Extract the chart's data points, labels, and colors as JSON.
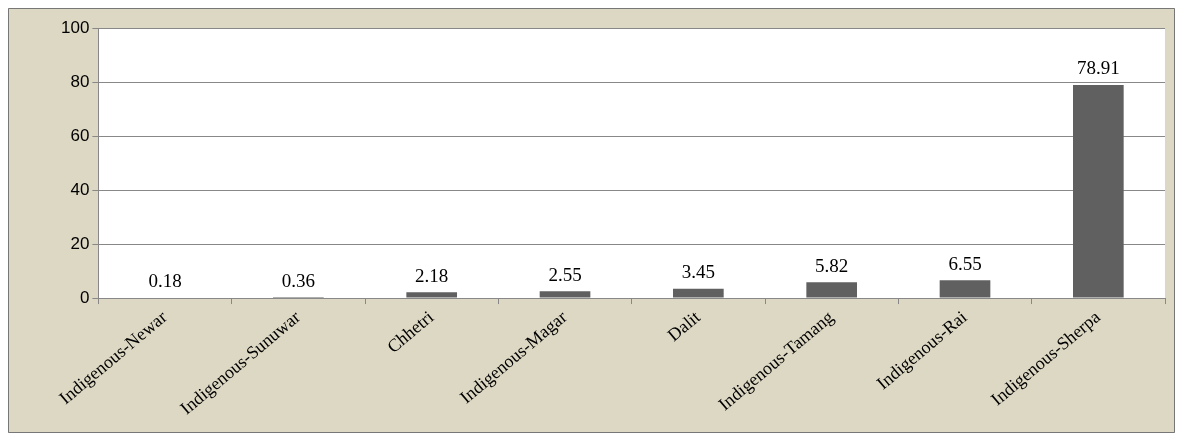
{
  "chart_data": {
    "type": "bar",
    "categories": [
      "Indigenous-Newar",
      "Indigenous-Sunuwar",
      "Chhetri",
      "Indigenous-Magar",
      "Dalit",
      "Indigenous-Tamang",
      "Indigenous-Rai",
      "Indigenous-Sherpa"
    ],
    "values": [
      0.18,
      0.36,
      2.18,
      2.55,
      3.45,
      5.82,
      6.55,
      78.91
    ],
    "color": "#606060",
    "ylim": [
      0,
      100
    ],
    "yticks": [
      0,
      20,
      40,
      60,
      80,
      100
    ],
    "grid": "y",
    "legend": false,
    "data_labels": true
  }
}
